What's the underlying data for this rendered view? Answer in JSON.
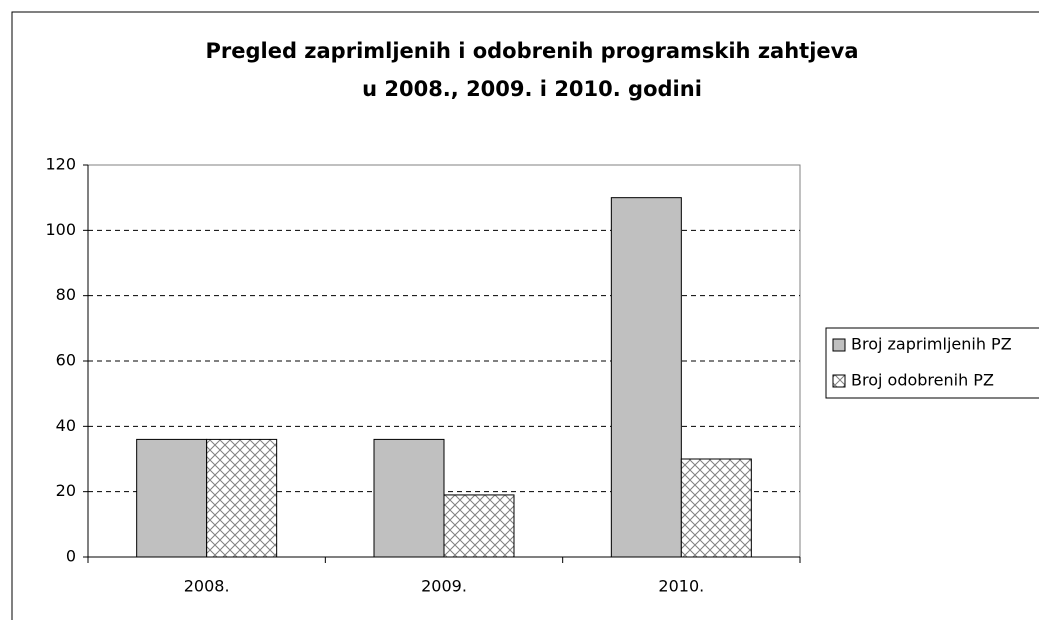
{
  "chart_data": {
    "type": "bar",
    "title": [
      "Pregled zaprimljenih i odobrenih programskih zahtjeva",
      "u 2008., 2009. i 2010. godini"
    ],
    "categories": [
      "2008.",
      "2009.",
      "2010."
    ],
    "series": [
      {
        "name": "Broj zaprimljenih PZ",
        "color": "#c0c0c0",
        "values": [
          36,
          36,
          110
        ]
      },
      {
        "name": "Broj odobrenih PZ",
        "color": "#808080",
        "pattern": "crosshatch",
        "values": [
          36,
          19,
          30
        ]
      }
    ],
    "ylim": [
      0,
      120
    ],
    "yticks": [
      0,
      20,
      40,
      60,
      80,
      100,
      120
    ],
    "grid": true,
    "legend": "right"
  }
}
